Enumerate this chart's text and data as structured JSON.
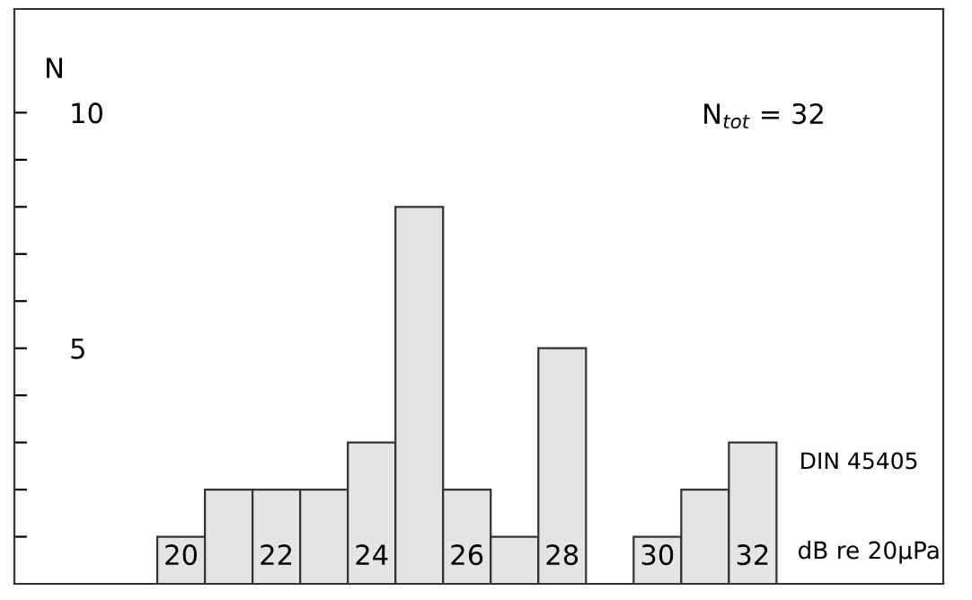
{
  "chart_data": {
    "type": "histogram",
    "bins": [
      19.5,
      20.5,
      21.5,
      22.5,
      23.5,
      24.5,
      25.5,
      26.5,
      27.5,
      28.5,
      29.5,
      30.5,
      31.5,
      32.5
    ],
    "values": [
      1,
      2,
      2,
      2,
      3,
      8,
      2,
      1,
      5,
      0,
      1,
      2,
      3
    ],
    "color": "#e4e4e4",
    "xlim": [
      16.5,
      36
    ],
    "xticks": [
      20,
      22,
      24,
      26,
      28,
      30,
      32
    ],
    "ylim": [
      0,
      12.2
    ],
    "yticks": [
      {
        "value": 1,
        "label": null
      },
      {
        "value": 2,
        "label": null
      },
      {
        "value": 3,
        "label": null
      },
      {
        "value": 4,
        "label": null
      },
      5,
      {
        "value": 6,
        "label": null
      },
      {
        "value": 7,
        "label": null
      },
      {
        "value": 8,
        "label": null
      },
      {
        "value": 9,
        "label": null
      },
      10
    ],
    "ylabel": "N",
    "xlabel": "dB re 20μPa",
    "annotations": [
      "N$_{tot}$ = 32",
      "DIN 45405"
    ],
    "grid": false
  }
}
